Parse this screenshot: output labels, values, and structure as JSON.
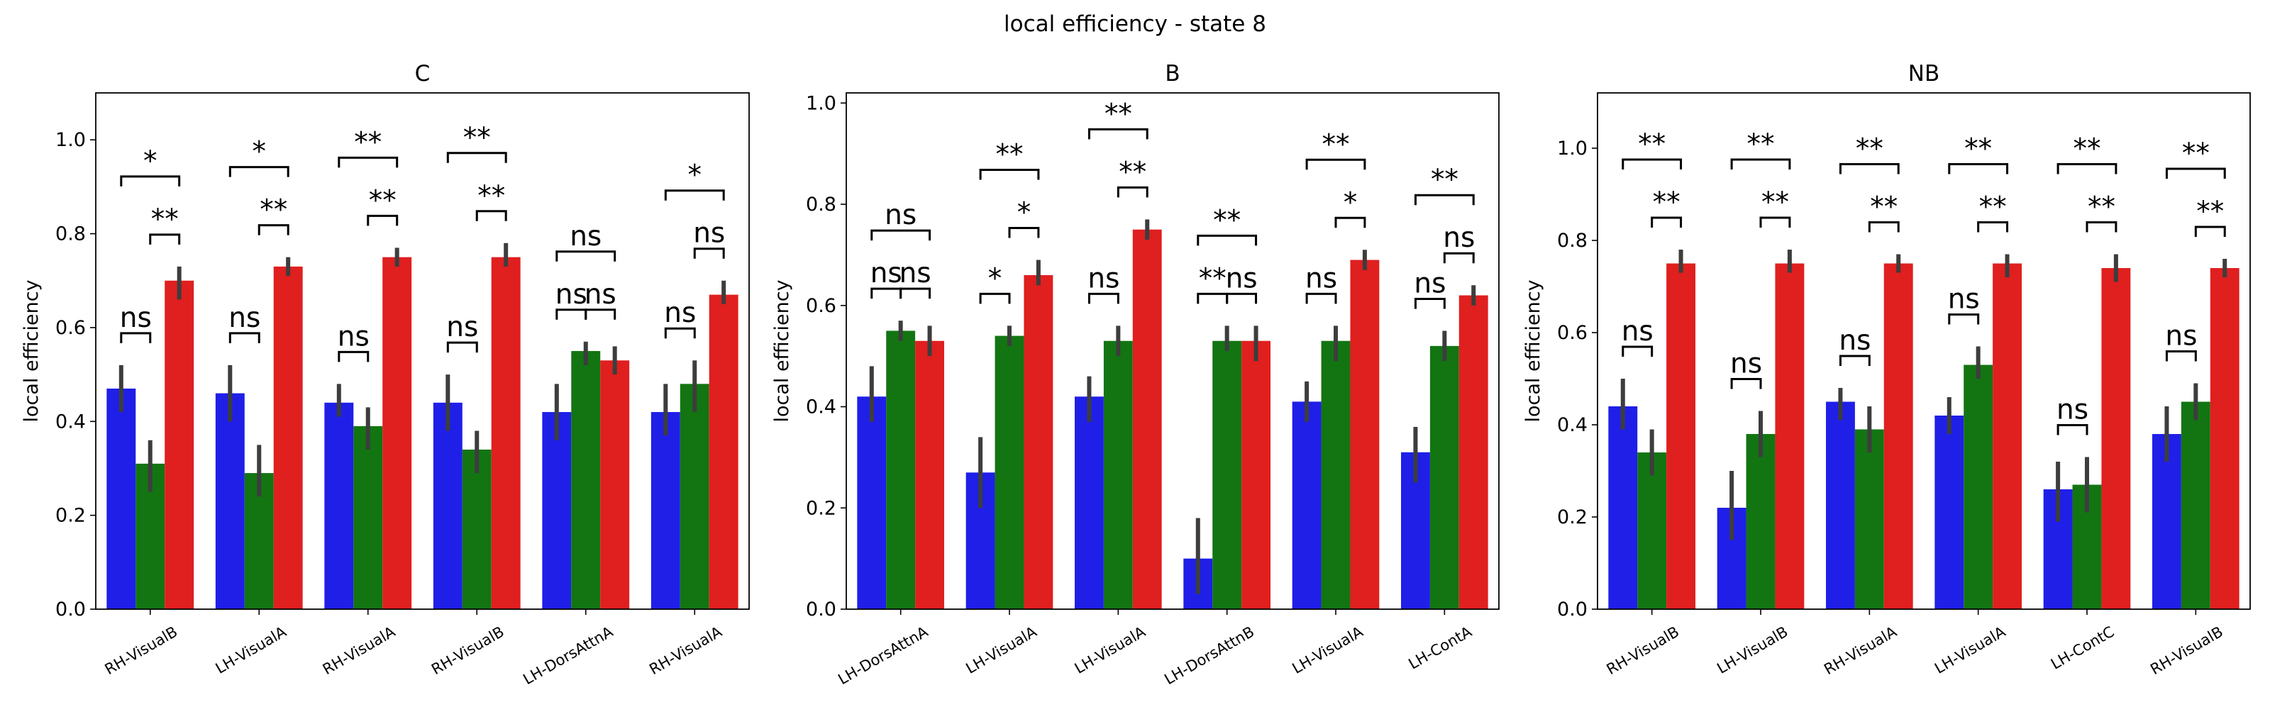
{
  "figure": {
    "title": "local efficiency - state 8",
    "colors": {
      "group_1": "#1f1fe8",
      "group_2": "#127512",
      "group_3": "#e01f1f",
      "error_bar": "#3d3d3d"
    }
  },
  "chart_data": [
    {
      "type": "bar",
      "title": "C",
      "xlabel": "",
      "ylabel": "local efficiency",
      "ylim": [
        0,
        1.1
      ],
      "yticks": [
        0.0,
        0.2,
        0.4,
        0.6,
        0.8,
        1.0
      ],
      "ytick_labels": [
        "0.0",
        "0.2",
        "0.4",
        "0.6",
        "0.8",
        "1.0"
      ],
      "grid": false,
      "legend": "none",
      "categories": [
        "RH-VisualB",
        "LH-VisualA",
        "RH-VisualA",
        "RH-VisualB",
        "LH-DorsAttnA",
        "RH-VisualA"
      ],
      "series": [
        {
          "color": "#1f1fe8",
          "values": [
            0.47,
            0.46,
            0.44,
            0.44,
            0.42,
            0.42
          ],
          "err_low": [
            0.42,
            0.4,
            0.41,
            0.38,
            0.36,
            0.37
          ],
          "err_high": [
            0.52,
            0.52,
            0.48,
            0.5,
            0.48,
            0.48
          ]
        },
        {
          "color": "#127512",
          "values": [
            0.31,
            0.29,
            0.39,
            0.34,
            0.55,
            0.48
          ],
          "err_low": [
            0.25,
            0.24,
            0.34,
            0.29,
            0.52,
            0.42
          ],
          "err_high": [
            0.36,
            0.35,
            0.43,
            0.38,
            0.57,
            0.53
          ]
        },
        {
          "color": "#e01f1f",
          "values": [
            0.7,
            0.73,
            0.75,
            0.75,
            0.53,
            0.67
          ],
          "err_low": [
            0.66,
            0.71,
            0.73,
            0.73,
            0.5,
            0.65
          ],
          "err_high": [
            0.73,
            0.75,
            0.77,
            0.78,
            0.56,
            0.7
          ]
        }
      ],
      "annotations": [
        {
          "pair": "1-2",
          "text": "ns"
        },
        {
          "pair": "2-3",
          "text": "**"
        },
        {
          "pair": "1-3",
          "text": "*"
        },
        {
          "pair": "1-2",
          "text": "ns"
        },
        {
          "pair": "2-3",
          "text": "**"
        },
        {
          "pair": "1-3",
          "text": "*"
        },
        {
          "pair": "1-2",
          "text": "ns"
        },
        {
          "pair": "2-3",
          "text": "**"
        },
        {
          "pair": "1-3",
          "text": "**"
        },
        {
          "pair": "1-2",
          "text": "ns"
        },
        {
          "pair": "2-3",
          "text": "**"
        },
        {
          "pair": "1-3",
          "text": "**"
        },
        {
          "pair": "1-2",
          "text": "ns"
        },
        {
          "pair": "2-3",
          "text": "ns"
        },
        {
          "pair": "1-3",
          "text": "ns"
        },
        {
          "pair": "1-2",
          "text": "ns"
        },
        {
          "pair": "2-3",
          "text": "ns"
        },
        {
          "pair": "1-3",
          "text": "*"
        }
      ]
    },
    {
      "type": "bar",
      "title": "B",
      "xlabel": "",
      "ylabel": "local efficiency",
      "ylim": [
        0,
        1.02
      ],
      "yticks": [
        0.0,
        0.2,
        0.4,
        0.6,
        0.8,
        1.0
      ],
      "ytick_labels": [
        "0.0",
        "0.2",
        "0.4",
        "0.6",
        "0.8",
        "1.0"
      ],
      "grid": false,
      "legend": "none",
      "categories": [
        "LH-DorsAttnA",
        "LH-VisualA",
        "LH-VisualA",
        "LH-DorsAttnB",
        "LH-VisualA",
        "LH-ContA"
      ],
      "series": [
        {
          "color": "#1f1fe8",
          "values": [
            0.42,
            0.27,
            0.42,
            0.1,
            0.41,
            0.31
          ],
          "err_low": [
            0.37,
            0.2,
            0.37,
            0.03,
            0.37,
            0.25
          ],
          "err_high": [
            0.48,
            0.34,
            0.46,
            0.18,
            0.45,
            0.36
          ]
        },
        {
          "color": "#127512",
          "values": [
            0.55,
            0.54,
            0.53,
            0.53,
            0.53,
            0.52
          ],
          "err_low": [
            0.53,
            0.52,
            0.5,
            0.51,
            0.49,
            0.49
          ],
          "err_high": [
            0.57,
            0.56,
            0.56,
            0.56,
            0.56,
            0.55
          ]
        },
        {
          "color": "#e01f1f",
          "values": [
            0.53,
            0.66,
            0.75,
            0.53,
            0.69,
            0.62
          ],
          "err_low": [
            0.5,
            0.64,
            0.73,
            0.49,
            0.67,
            0.6
          ],
          "err_high": [
            0.56,
            0.69,
            0.77,
            0.56,
            0.71,
            0.64
          ]
        }
      ],
      "annotations": [
        {
          "pair": "1-2",
          "text": "ns"
        },
        {
          "pair": "2-3",
          "text": "ns"
        },
        {
          "pair": "1-3",
          "text": "ns"
        },
        {
          "pair": "1-2",
          "text": "*"
        },
        {
          "pair": "2-3",
          "text": "*"
        },
        {
          "pair": "1-3",
          "text": "**"
        },
        {
          "pair": "1-2",
          "text": "ns"
        },
        {
          "pair": "2-3",
          "text": "**"
        },
        {
          "pair": "1-3",
          "text": "**"
        },
        {
          "pair": "1-2",
          "text": "**"
        },
        {
          "pair": "2-3",
          "text": "ns"
        },
        {
          "pair": "1-3",
          "text": "**"
        },
        {
          "pair": "1-2",
          "text": "ns"
        },
        {
          "pair": "2-3",
          "text": "*"
        },
        {
          "pair": "1-3",
          "text": "**"
        },
        {
          "pair": "1-2",
          "text": "ns"
        },
        {
          "pair": "2-3",
          "text": "ns"
        },
        {
          "pair": "1-3",
          "text": "**"
        }
      ]
    },
    {
      "type": "bar",
      "title": "NB",
      "xlabel": "",
      "ylabel": "local efficiency",
      "ylim": [
        0,
        1.12
      ],
      "yticks": [
        0.0,
        0.2,
        0.4,
        0.6,
        0.8,
        1.0
      ],
      "ytick_labels": [
        "0.0",
        "0.2",
        "0.4",
        "0.6",
        "0.8",
        "1.0"
      ],
      "grid": false,
      "legend": "none",
      "categories": [
        "RH-VisualB",
        "LH-VisualB",
        "RH-VisualA",
        "LH-VisualA",
        "LH-ContC",
        "RH-VisualB"
      ],
      "series": [
        {
          "color": "#1f1fe8",
          "values": [
            0.44,
            0.22,
            0.45,
            0.42,
            0.26,
            0.38
          ],
          "err_low": [
            0.39,
            0.15,
            0.41,
            0.38,
            0.19,
            0.32
          ],
          "err_high": [
            0.5,
            0.3,
            0.48,
            0.46,
            0.32,
            0.44
          ]
        },
        {
          "color": "#127512",
          "values": [
            0.34,
            0.38,
            0.39,
            0.53,
            0.27,
            0.45
          ],
          "err_low": [
            0.29,
            0.33,
            0.34,
            0.5,
            0.21,
            0.41
          ],
          "err_high": [
            0.39,
            0.43,
            0.44,
            0.57,
            0.33,
            0.49
          ]
        },
        {
          "color": "#e01f1f",
          "values": [
            0.75,
            0.75,
            0.75,
            0.75,
            0.74,
            0.74
          ],
          "err_low": [
            0.73,
            0.73,
            0.73,
            0.72,
            0.71,
            0.72
          ],
          "err_high": [
            0.78,
            0.78,
            0.77,
            0.77,
            0.77,
            0.76
          ]
        }
      ],
      "annotations": [
        {
          "pair": "1-2",
          "text": "ns"
        },
        {
          "pair": "2-3",
          "text": "**"
        },
        {
          "pair": "1-3",
          "text": "**"
        },
        {
          "pair": "1-2",
          "text": "ns"
        },
        {
          "pair": "2-3",
          "text": "**"
        },
        {
          "pair": "1-3",
          "text": "**"
        },
        {
          "pair": "1-2",
          "text": "ns"
        },
        {
          "pair": "2-3",
          "text": "**"
        },
        {
          "pair": "1-3",
          "text": "**"
        },
        {
          "pair": "1-2",
          "text": "ns"
        },
        {
          "pair": "2-3",
          "text": "**"
        },
        {
          "pair": "1-3",
          "text": "**"
        },
        {
          "pair": "1-2",
          "text": "ns"
        },
        {
          "pair": "2-3",
          "text": "**"
        },
        {
          "pair": "1-3",
          "text": "**"
        },
        {
          "pair": "1-2",
          "text": "ns"
        },
        {
          "pair": "2-3",
          "text": "**"
        },
        {
          "pair": "1-3",
          "text": "**"
        }
      ]
    }
  ]
}
